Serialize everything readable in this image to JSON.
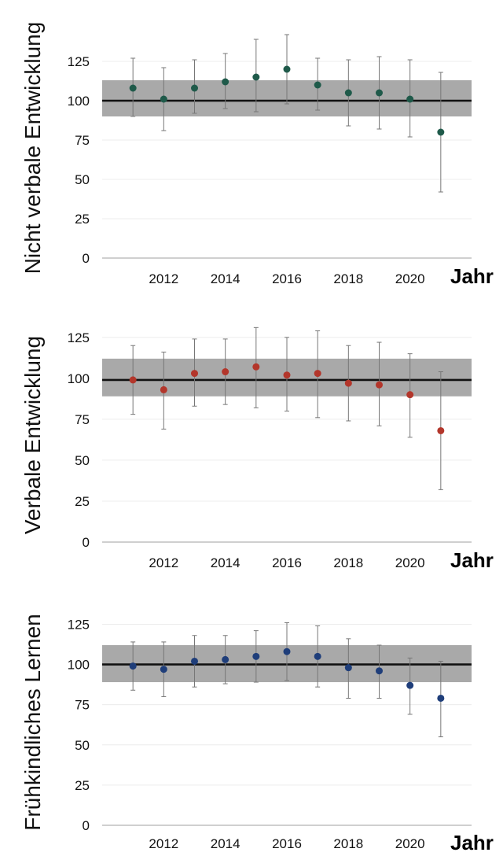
{
  "colors": {
    "band": "#a9a9a9",
    "reference_line": "#111111",
    "grid": "#ececec",
    "axis": "#cfcfcf",
    "error_bar": "#777777"
  },
  "chart_data": [
    {
      "type": "scatter",
      "ylabel": "Nicht verbale Entwicklung",
      "xlabel": "Jahr",
      "xlim": [
        2010,
        2022
      ],
      "ylim": [
        0,
        140
      ],
      "x_ticks": [
        2012,
        2014,
        2016,
        2018,
        2020
      ],
      "y_ticks": [
        0,
        25,
        50,
        75,
        100,
        125
      ],
      "reference_line": 100,
      "band": [
        90,
        113
      ],
      "marker_color": "#1f5a4a",
      "series": [
        {
          "name": "Nicht verbale Entwicklung",
          "x": [
            2011,
            2012,
            2013,
            2014,
            2015,
            2016,
            2017,
            2018,
            2019,
            2020,
            2021
          ],
          "y": [
            108,
            101,
            108,
            112,
            115,
            120,
            110,
            105,
            105,
            101,
            80
          ],
          "err_low": [
            90,
            81,
            92,
            95,
            93,
            98,
            94,
            84,
            82,
            77,
            42
          ],
          "err_high": [
            127,
            121,
            126,
            130,
            139,
            142,
            127,
            126,
            128,
            126,
            118
          ]
        }
      ]
    },
    {
      "type": "scatter",
      "ylabel": "Verbale Entwicklung",
      "xlabel": "Jahr",
      "xlim": [
        2010,
        2022
      ],
      "ylim": [
        0,
        135
      ],
      "x_ticks": [
        2012,
        2014,
        2016,
        2018,
        2020
      ],
      "y_ticks": [
        0,
        25,
        50,
        75,
        100,
        125
      ],
      "reference_line": 99,
      "band": [
        89,
        112
      ],
      "marker_color": "#b3362b",
      "series": [
        {
          "name": "Verbale Entwicklung",
          "x": [
            2011,
            2012,
            2013,
            2014,
            2015,
            2016,
            2017,
            2018,
            2019,
            2020,
            2021
          ],
          "y": [
            99,
            93,
            103,
            104,
            107,
            102,
            103,
            97,
            96,
            90,
            68
          ],
          "err_low": [
            78,
            69,
            83,
            84,
            82,
            80,
            76,
            74,
            71,
            64,
            32
          ],
          "err_high": [
            120,
            116,
            124,
            124,
            131,
            125,
            129,
            120,
            122,
            115,
            104
          ]
        }
      ]
    },
    {
      "type": "scatter",
      "ylabel": "Frühkindliches Lernen",
      "xlabel": "Jahr",
      "xlim": [
        2010,
        2022
      ],
      "ylim": [
        0,
        135
      ],
      "x_ticks": [
        2012,
        2014,
        2016,
        2018,
        2020
      ],
      "y_ticks": [
        0,
        25,
        50,
        75,
        100,
        125
      ],
      "reference_line": 100,
      "band": [
        89,
        112
      ],
      "marker_color": "#1f3e7a",
      "series": [
        {
          "name": "Frühkindliches Lernen",
          "x": [
            2011,
            2012,
            2013,
            2014,
            2015,
            2016,
            2017,
            2018,
            2019,
            2020,
            2021
          ],
          "y": [
            99,
            97,
            102,
            103,
            105,
            108,
            105,
            98,
            96,
            87,
            79
          ],
          "err_low": [
            84,
            80,
            86,
            88,
            89,
            90,
            86,
            79,
            79,
            69,
            55
          ],
          "err_high": [
            114,
            114,
            118,
            118,
            121,
            126,
            124,
            116,
            112,
            104,
            102
          ]
        }
      ]
    }
  ]
}
